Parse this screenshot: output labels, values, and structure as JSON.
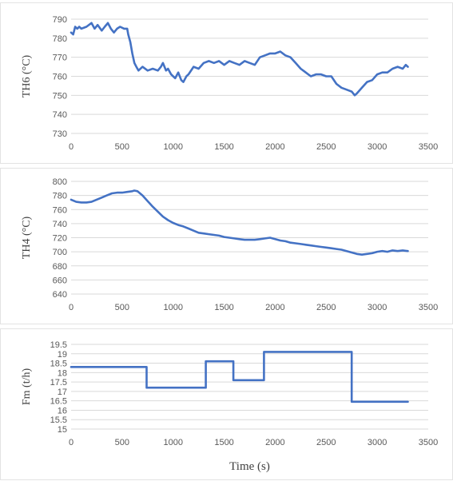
{
  "chart_data": [
    {
      "type": "line",
      "title": "",
      "xlabel": "",
      "ylabel": "TH6 (°C)",
      "xlim": [
        0,
        3500
      ],
      "ylim": [
        730,
        790
      ],
      "x_ticks": [
        "0",
        "500",
        "1000",
        "1500",
        "2000",
        "2500",
        "3000",
        "3500"
      ],
      "y_ticks": [
        "730",
        "740",
        "750",
        "760",
        "770",
        "780",
        "790"
      ],
      "grid": "horizontal",
      "color": "#4472c4",
      "series": [
        {
          "x": [
            0,
            20,
            40,
            60,
            80,
            100,
            150,
            200,
            230,
            260,
            300,
            330,
            360,
            390,
            420,
            450,
            480,
            520,
            550,
            560,
            580,
            600,
            620,
            640,
            660,
            700,
            750,
            800,
            850,
            880,
            900,
            930,
            950,
            980,
            1000,
            1020,
            1050,
            1080,
            1100,
            1130,
            1150,
            1200,
            1250,
            1300,
            1350,
            1400,
            1450,
            1500,
            1550,
            1600,
            1650,
            1700,
            1750,
            1800,
            1850,
            1900,
            1950,
            2000,
            2050,
            2100,
            2150,
            2200,
            2250,
            2300,
            2350,
            2400,
            2450,
            2500,
            2550,
            2600,
            2650,
            2700,
            2750,
            2780,
            2800,
            2850,
            2900,
            2950,
            3000,
            3050,
            3100,
            3150,
            3200,
            3250,
            3280,
            3300
          ],
          "y": [
            783,
            782,
            786,
            785,
            786,
            785,
            786,
            788,
            785,
            787,
            784,
            786,
            788,
            785,
            783,
            785,
            786,
            785,
            785,
            782,
            778,
            772,
            767,
            765,
            763,
            765,
            763,
            764,
            763,
            765,
            767,
            763,
            764,
            761,
            760,
            759,
            762,
            758,
            757,
            760,
            761,
            765,
            764,
            767,
            768,
            767,
            768,
            766,
            768,
            767,
            766,
            768,
            767,
            766,
            770,
            771,
            772,
            772,
            773,
            771,
            770,
            767,
            764,
            762,
            760,
            761,
            761,
            760,
            760,
            756,
            754,
            753,
            752,
            750,
            751,
            754,
            757,
            758,
            761,
            762,
            762,
            764,
            765,
            764,
            766,
            765
          ]
        }
      ]
    },
    {
      "type": "line",
      "title": "",
      "xlabel": "",
      "ylabel": "TH4 (°C)",
      "xlim": [
        0,
        3500
      ],
      "ylim": [
        640,
        800
      ],
      "x_ticks": [
        "0",
        "500",
        "1000",
        "1500",
        "2000",
        "2500",
        "3000",
        "3500"
      ],
      "y_ticks": [
        "640",
        "660",
        "680",
        "700",
        "720",
        "740",
        "760",
        "780",
        "800"
      ],
      "grid": "horizontal",
      "color": "#4472c4",
      "series": [
        {
          "x": [
            0,
            50,
            100,
            150,
            200,
            250,
            300,
            350,
            400,
            450,
            500,
            550,
            600,
            620,
            650,
            700,
            750,
            800,
            850,
            900,
            950,
            1000,
            1050,
            1100,
            1150,
            1200,
            1250,
            1300,
            1350,
            1400,
            1450,
            1500,
            1550,
            1600,
            1650,
            1700,
            1750,
            1800,
            1850,
            1900,
            1950,
            2000,
            2050,
            2100,
            2150,
            2200,
            2250,
            2300,
            2350,
            2400,
            2450,
            2500,
            2550,
            2600,
            2650,
            2700,
            2750,
            2800,
            2850,
            2900,
            2950,
            3000,
            3050,
            3100,
            3150,
            3200,
            3250,
            3300
          ],
          "y": [
            774,
            771,
            770,
            770,
            771,
            774,
            777,
            780,
            783,
            784,
            784,
            785,
            786,
            787,
            786,
            780,
            772,
            764,
            757,
            750,
            745,
            741,
            738,
            736,
            733,
            730,
            727,
            726,
            725,
            724,
            723,
            721,
            720,
            719,
            718,
            717,
            717,
            717,
            718,
            719,
            720,
            718,
            716,
            715,
            713,
            712,
            711,
            710,
            709,
            708,
            707,
            706,
            705,
            704,
            703,
            701,
            699,
            697,
            696,
            697,
            698,
            700,
            701,
            700,
            702,
            701,
            702,
            701
          ]
        }
      ]
    },
    {
      "type": "line",
      "title": "",
      "xlabel": "Time (s)",
      "ylabel": "Fm (t/h)",
      "xlim": [
        0,
        3500
      ],
      "ylim": [
        15,
        19.5
      ],
      "x_ticks": [
        "0",
        "500",
        "1000",
        "1500",
        "2000",
        "2500",
        "3000",
        "3500"
      ],
      "y_ticks": [
        "15",
        "15.5",
        "16",
        "16.5",
        "17",
        "17.5",
        "18",
        "18.5",
        "19",
        "19.5"
      ],
      "grid": "horizontal",
      "color": "#4472c4",
      "series": [
        {
          "x": [
            0,
            740,
            740,
            1320,
            1320,
            1590,
            1590,
            1890,
            1890,
            2750,
            2750,
            3300
          ],
          "y": [
            18.3,
            18.3,
            17.2,
            17.2,
            18.6,
            18.6,
            17.6,
            17.6,
            19.1,
            19.1,
            16.45,
            16.45
          ]
        }
      ]
    }
  ]
}
